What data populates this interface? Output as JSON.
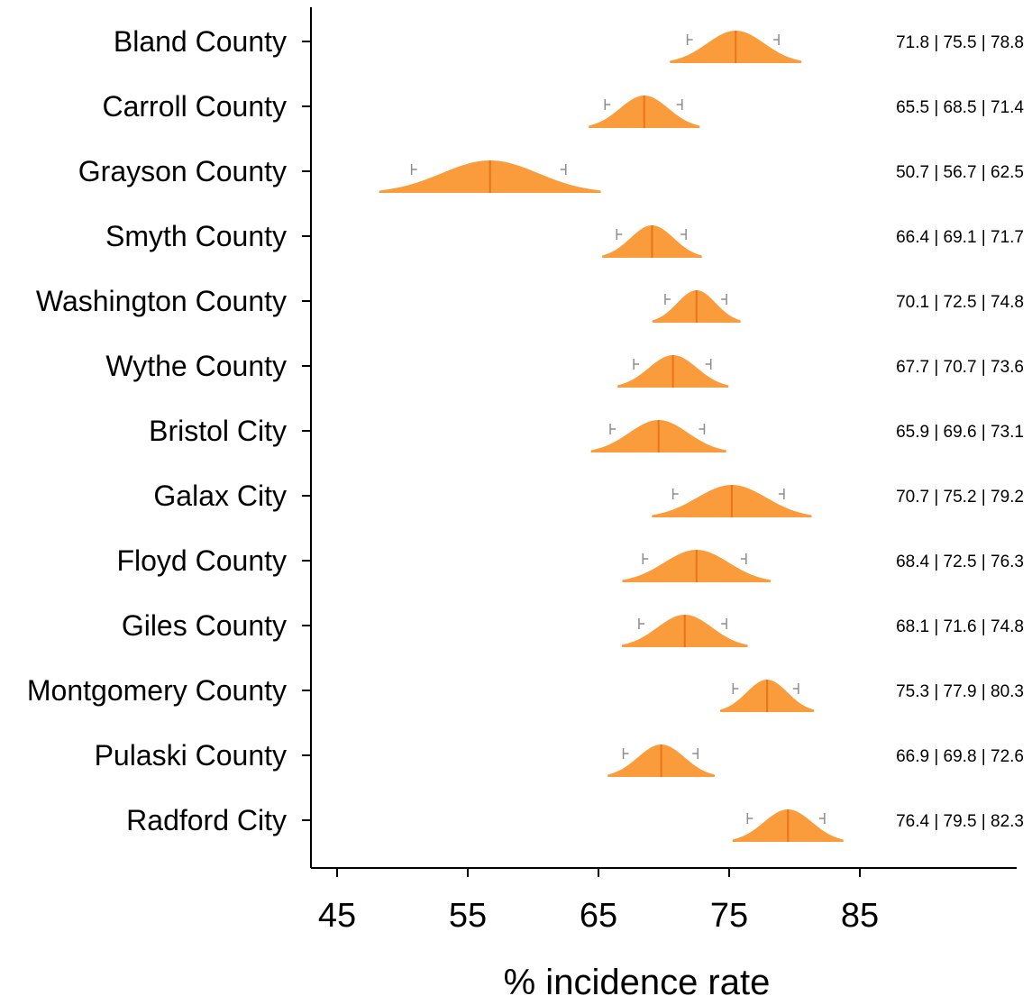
{
  "chart_data": {
    "type": "density-interval",
    "xlabel": "% incidence rate",
    "xlim": [
      41,
      93
    ],
    "xticks": [
      45,
      55,
      65,
      75,
      85
    ],
    "colors": {
      "fill": "#FA9B3C",
      "median": "#E5761A",
      "interval": "#8c8c8c"
    },
    "rows": [
      {
        "category": "Bland County",
        "lower": 71.8,
        "median": 75.5,
        "upper": 78.8,
        "label": "71.8 | 75.5 | 78.8"
      },
      {
        "category": "Carroll County",
        "lower": 65.5,
        "median": 68.5,
        "upper": 71.4,
        "label": "65.5 | 68.5 | 71.4"
      },
      {
        "category": "Grayson County",
        "lower": 50.7,
        "median": 56.7,
        "upper": 62.5,
        "label": "50.7 | 56.7 | 62.5"
      },
      {
        "category": "Smyth County",
        "lower": 66.4,
        "median": 69.1,
        "upper": 71.7,
        "label": "66.4 | 69.1 | 71.7"
      },
      {
        "category": "Washington County",
        "lower": 70.1,
        "median": 72.5,
        "upper": 74.8,
        "label": "70.1 | 72.5 | 74.8"
      },
      {
        "category": "Wythe County",
        "lower": 67.7,
        "median": 70.7,
        "upper": 73.6,
        "label": "67.7 | 70.7 | 73.6"
      },
      {
        "category": "Bristol City",
        "lower": 65.9,
        "median": 69.6,
        "upper": 73.1,
        "label": "65.9 | 69.6 | 73.1"
      },
      {
        "category": "Galax City",
        "lower": 70.7,
        "median": 75.2,
        "upper": 79.2,
        "label": "70.7 | 75.2 | 79.2"
      },
      {
        "category": "Floyd County",
        "lower": 68.4,
        "median": 72.5,
        "upper": 76.3,
        "label": "68.4 | 72.5 | 76.3"
      },
      {
        "category": "Giles County",
        "lower": 68.1,
        "median": 71.6,
        "upper": 74.8,
        "label": "68.1 | 71.6 | 74.8"
      },
      {
        "category": "Montgomery County",
        "lower": 75.3,
        "median": 77.9,
        "upper": 80.3,
        "label": "75.3 | 77.9 | 80.3"
      },
      {
        "category": "Pulaski County",
        "lower": 66.9,
        "median": 69.8,
        "upper": 72.6,
        "label": "66.9 | 69.8 | 72.6"
      },
      {
        "category": "Radford City",
        "lower": 76.4,
        "median": 79.5,
        "upper": 82.3,
        "label": "76.4 | 79.5 | 82.3"
      }
    ]
  }
}
